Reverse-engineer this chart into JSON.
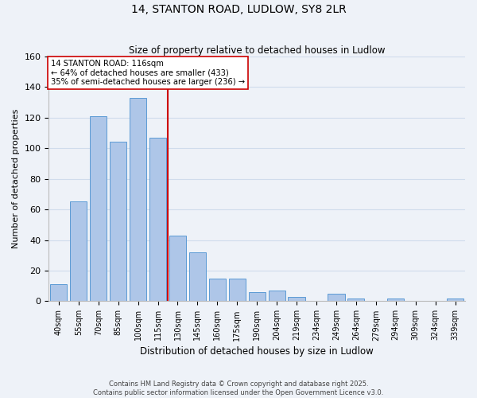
{
  "title": "14, STANTON ROAD, LUDLOW, SY8 2LR",
  "subtitle": "Size of property relative to detached houses in Ludlow",
  "xlabel": "Distribution of detached houses by size in Ludlow",
  "ylabel": "Number of detached properties",
  "bar_labels": [
    "40sqm",
    "55sqm",
    "70sqm",
    "85sqm",
    "100sqm",
    "115sqm",
    "130sqm",
    "145sqm",
    "160sqm",
    "175sqm",
    "190sqm",
    "204sqm",
    "219sqm",
    "234sqm",
    "249sqm",
    "264sqm",
    "279sqm",
    "294sqm",
    "309sqm",
    "324sqm",
    "339sqm"
  ],
  "bar_values": [
    11,
    65,
    121,
    104,
    133,
    107,
    43,
    32,
    15,
    15,
    6,
    7,
    3,
    0,
    5,
    2,
    0,
    2,
    0,
    0,
    2
  ],
  "bar_color": "#aec6e8",
  "bar_edge_color": "#5b9bd5",
  "vline_index": 5,
  "vline_color": "#cc0000",
  "ylim": [
    0,
    160
  ],
  "yticks": [
    0,
    20,
    40,
    60,
    80,
    100,
    120,
    140,
    160
  ],
  "annotation_title": "14 STANTON ROAD: 116sqm",
  "annotation_line1": "← 64% of detached houses are smaller (433)",
  "annotation_line2": "35% of semi-detached houses are larger (236) →",
  "annotation_box_color": "#ffffff",
  "annotation_box_edge": "#cc0000",
  "grid_color": "#d0dcec",
  "bg_color": "#eef2f8",
  "footer1": "Contains HM Land Registry data © Crown copyright and database right 2025.",
  "footer2": "Contains public sector information licensed under the Open Government Licence v3.0."
}
